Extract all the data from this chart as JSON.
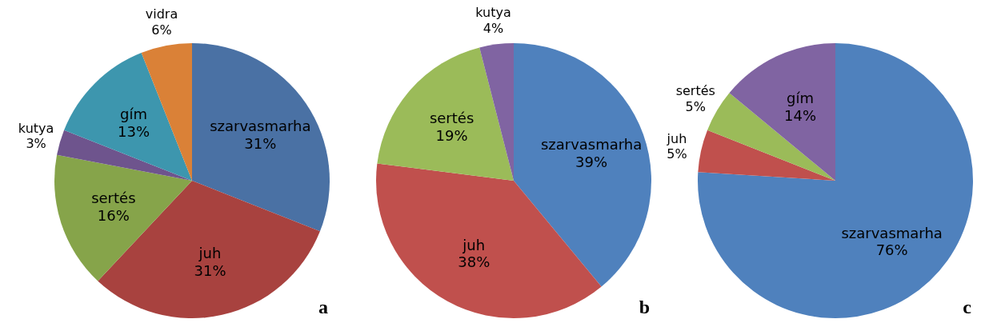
{
  "chart_data": [
    {
      "type": "pie",
      "categories": [
        "szarvasmarha",
        "juh",
        "sertés",
        "kutya",
        "gím",
        "vidra"
      ],
      "values": [
        31,
        31,
        16,
        3,
        13,
        6
      ],
      "value_labels": [
        "31%",
        "31%",
        "16%",
        "3%",
        "13%",
        "6%"
      ],
      "colors": [
        "#4a71a4",
        "#a8423f",
        "#86a44a",
        "#6e548d",
        "#3d96ae",
        "#da8137"
      ],
      "annotations": [
        "a"
      ]
    },
    {
      "type": "pie",
      "categories": [
        "szarvasmarha",
        "juh",
        "sertés",
        "kutya"
      ],
      "values": [
        39,
        38,
        19,
        4
      ],
      "value_labels": [
        "39%",
        "38%",
        "19%",
        "4%"
      ],
      "colors": [
        "#4f81bd",
        "#c0504d",
        "#9bbb59",
        "#8064a2"
      ],
      "annotations": [
        "b"
      ]
    },
    {
      "type": "pie",
      "categories": [
        "szarvasmarha",
        "juh",
        "sertés",
        "gím"
      ],
      "values": [
        76,
        5,
        5,
        14
      ],
      "value_labels": [
        "76%",
        "5%",
        "5%",
        "14%"
      ],
      "colors": [
        "#4f81bd",
        "#c0504d",
        "#9bbb59",
        "#8064a2"
      ],
      "annotations": [
        "c"
      ]
    }
  ]
}
